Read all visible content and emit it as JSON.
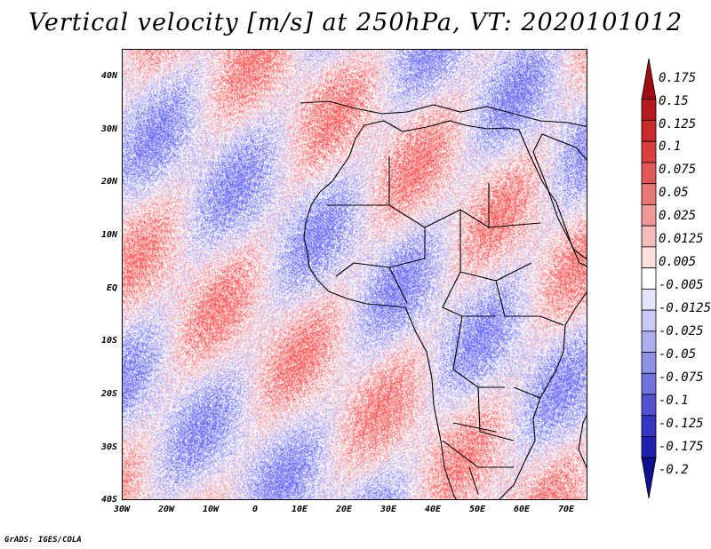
{
  "title": "Vertical velocity [m/s] at 250hPa, VT: 2020101012",
  "credit": "GrADS: IGES/COLA",
  "map": {
    "lat_labels": [
      "40N",
      "30N",
      "20N",
      "10N",
      "EQ",
      "10S",
      "20S",
      "30S",
      "40S"
    ],
    "lon_labels": [
      "30W",
      "20W",
      "10W",
      "0",
      "10E",
      "20E",
      "30E",
      "40E",
      "50E",
      "60E",
      "70E"
    ],
    "lat_range": [
      -40,
      45
    ],
    "lon_range": [
      -30,
      75
    ]
  },
  "colorbar": {
    "levels": [
      "0.175",
      "0.15",
      "0.125",
      "0.1",
      "0.075",
      "0.05",
      "0.025",
      "0.0125",
      "0.005",
      "-0.005",
      "-0.0125",
      "-0.025",
      "-0.05",
      "-0.075",
      "-0.1",
      "-0.125",
      "-0.175",
      "-0.2"
    ],
    "colors": [
      "#9e0e12",
      "#b51a1f",
      "#c92b2b",
      "#d84040",
      "#e05a5a",
      "#e87878",
      "#f09898",
      "#f6bcbc",
      "#fbe0e0",
      "#ffffff",
      "#e4e4fb",
      "#c9c9f5",
      "#aeaeee",
      "#9090e6",
      "#7272de",
      "#5252d2",
      "#3636c2",
      "#2020b0",
      "#10108f"
    ]
  }
}
